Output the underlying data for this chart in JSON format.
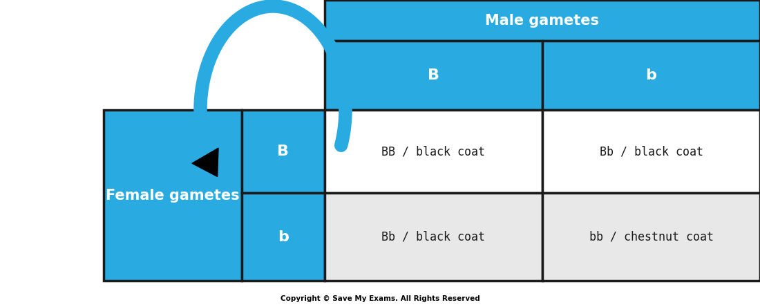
{
  "blue": "#29ABE2",
  "white": "#FFFFFF",
  "light_gray": "#E8E8E8",
  "black": "#000000",
  "dark_text": "#1a1a1a",
  "border_color": "#1a1a1a",
  "male_gametes_label": "Male gametes",
  "female_gametes_label": "Female gametes",
  "male_alleles": [
    "B",
    "b"
  ],
  "female_alleles": [
    "B",
    "b"
  ],
  "cells": [
    [
      "BB / black coat",
      "Bb / black coat"
    ],
    [
      "Bb / black coat",
      "bb / chestnut coat"
    ]
  ],
  "copyright": "Copyright © Save My Exams. All Rights Reserved",
  "cell_row2_bg": "#E8E8E8",
  "allele_fontsize": 16,
  "header_fontsize": 15,
  "cell_fontsize": 12,
  "copyright_fontsize": 7.5,
  "arc_color": "#29ABE2",
  "arc_linewidth": 14,
  "arrow_color": "#000000",
  "border_lw": 2.5
}
